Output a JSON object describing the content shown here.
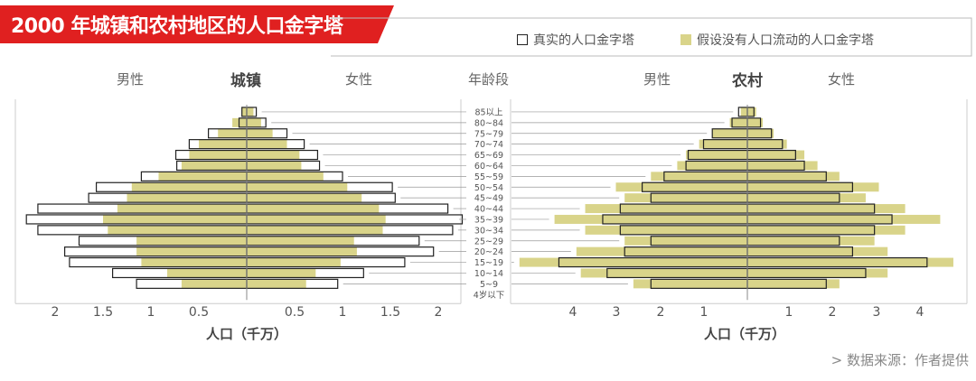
{
  "title": "2000 年城镇和农村地区的人口金字塔",
  "legend": {
    "actual": "真实的人口金字塔",
    "hypothetical": "假设没有人口流动的人口金字塔"
  },
  "colors": {
    "banner": "#e02020",
    "hypothetical": "#d9d48a",
    "outline": "#222222",
    "axis": "#888888"
  },
  "headers": {
    "urban_male": "男性",
    "urban_title": "城镇",
    "urban_female": "女性",
    "age": "年龄段",
    "rural_male": "男性",
    "rural_title": "农村",
    "rural_female": "女性"
  },
  "urban_ticks": [
    "2",
    "1.5",
    "1",
    "0.5",
    "0.5",
    "1",
    "1.5",
    "2"
  ],
  "rural_ticks": [
    "4",
    "3",
    "2",
    "1",
    "1",
    "2",
    "3",
    "4"
  ],
  "xlabel_urban": "人口（千万）",
  "xlabel_rural": "人口（千万）",
  "source": "> 数据来源：作者提供",
  "chart_data": [
    {
      "type": "bar",
      "subtype": "population-pyramid",
      "title": "城镇",
      "xlabel": "人口（千万）",
      "xlim": [
        -2,
        2
      ],
      "categories": [
        "4岁以下",
        "5~9",
        "10~14",
        "15~19",
        "20~24",
        "25~29",
        "30~34",
        "35~39",
        "40~44",
        "45~49",
        "50~54",
        "55~59",
        "60~64",
        "65~69",
        "70~74",
        "75~79",
        "80~84",
        "85以上"
      ],
      "series": [
        {
          "name": "真实的人口金字塔",
          "male": [
            0,
            1.15,
            1.4,
            1.85,
            1.9,
            1.75,
            2.18,
            2.3,
            2.18,
            1.65,
            1.57,
            1.1,
            0.73,
            0.74,
            0.6,
            0.4,
            0.08,
            0.05
          ],
          "female": [
            0,
            0.95,
            1.22,
            1.65,
            1.95,
            1.8,
            2.15,
            2.25,
            2.1,
            1.55,
            1.52,
            1.0,
            0.76,
            0.74,
            0.6,
            0.42,
            0.2,
            0.1
          ]
        },
        {
          "name": "假设没有人口流动的人口金字塔",
          "male": [
            0,
            0.68,
            0.83,
            1.1,
            1.15,
            1.15,
            1.45,
            1.5,
            1.35,
            1.25,
            1.2,
            0.92,
            0.68,
            0.6,
            0.5,
            0.3,
            0.15,
            0.05
          ],
          "female": [
            0,
            0.62,
            0.72,
            0.98,
            1.15,
            1.12,
            1.42,
            1.45,
            1.38,
            1.2,
            1.05,
            0.8,
            0.57,
            0.55,
            0.42,
            0.27,
            0.15,
            0.07
          ]
        }
      ]
    },
    {
      "type": "bar",
      "subtype": "population-pyramid",
      "title": "农村",
      "xlabel": "人口（千万）",
      "xlim": [
        -4.5,
        5
      ],
      "categories": [
        "4岁以下",
        "5~9",
        "10~14",
        "15~19",
        "20~24",
        "25~29",
        "30~34",
        "35~39",
        "40~44",
        "45~49",
        "50~54",
        "55~59",
        "60~64",
        "65~69",
        "70~74",
        "75~79",
        "80~84",
        "85以上"
      ],
      "series": [
        {
          "name": "真实的人口金字塔",
          "male": [
            0,
            2.2,
            3.2,
            4.3,
            2.8,
            2.2,
            2.9,
            3.3,
            2.9,
            2.2,
            2.4,
            1.9,
            1.4,
            1.35,
            1.0,
            0.8,
            0.35,
            0.2
          ],
          "female": [
            0,
            1.8,
            2.7,
            4.1,
            2.4,
            2.1,
            2.9,
            3.3,
            2.9,
            2.1,
            2.4,
            1.8,
            1.3,
            1.1,
            0.8,
            0.55,
            0.3,
            0.15
          ]
        },
        {
          "name": "假设没有人口流动的人口金字塔",
          "male": [
            0,
            2.6,
            3.8,
            5.2,
            3.9,
            2.8,
            3.7,
            4.4,
            3.7,
            2.8,
            3.0,
            2.2,
            1.6,
            1.4,
            1.1,
            0.8,
            0.4,
            0.15
          ],
          "female": [
            0,
            2.1,
            3.2,
            4.7,
            3.2,
            2.9,
            3.6,
            4.4,
            3.6,
            2.7,
            3.0,
            2.1,
            1.6,
            1.3,
            0.9,
            0.6,
            0.35,
            0.2
          ]
        }
      ]
    }
  ]
}
